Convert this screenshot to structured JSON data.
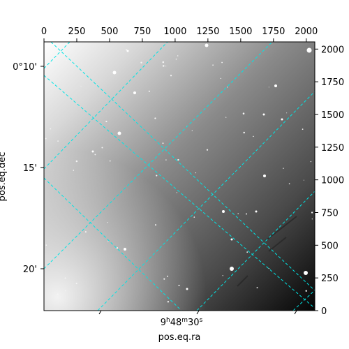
{
  "chart_data": {
    "type": "image",
    "colormap": "gray",
    "xlabel": "pos.eq.ra",
    "ylabel": "pos.eq.dec",
    "top_axis_ticks": [
      "0",
      "250",
      "500",
      "750",
      "1000",
      "1250",
      "1500",
      "1750",
      "2000"
    ],
    "right_axis_ticks": [
      "0",
      "250",
      "500",
      "750",
      "1000",
      "1250",
      "1500",
      "1750",
      "2000"
    ],
    "dec_ticks": [
      "0°10'",
      "15'",
      "20'"
    ],
    "ra_tick": {
      "h": "9",
      "m": "48",
      "s": "30"
    },
    "ra_tick_units": {
      "h": "h",
      "m": "m",
      "s": "s"
    },
    "grid": true,
    "grid_color": "#00e5e5"
  }
}
